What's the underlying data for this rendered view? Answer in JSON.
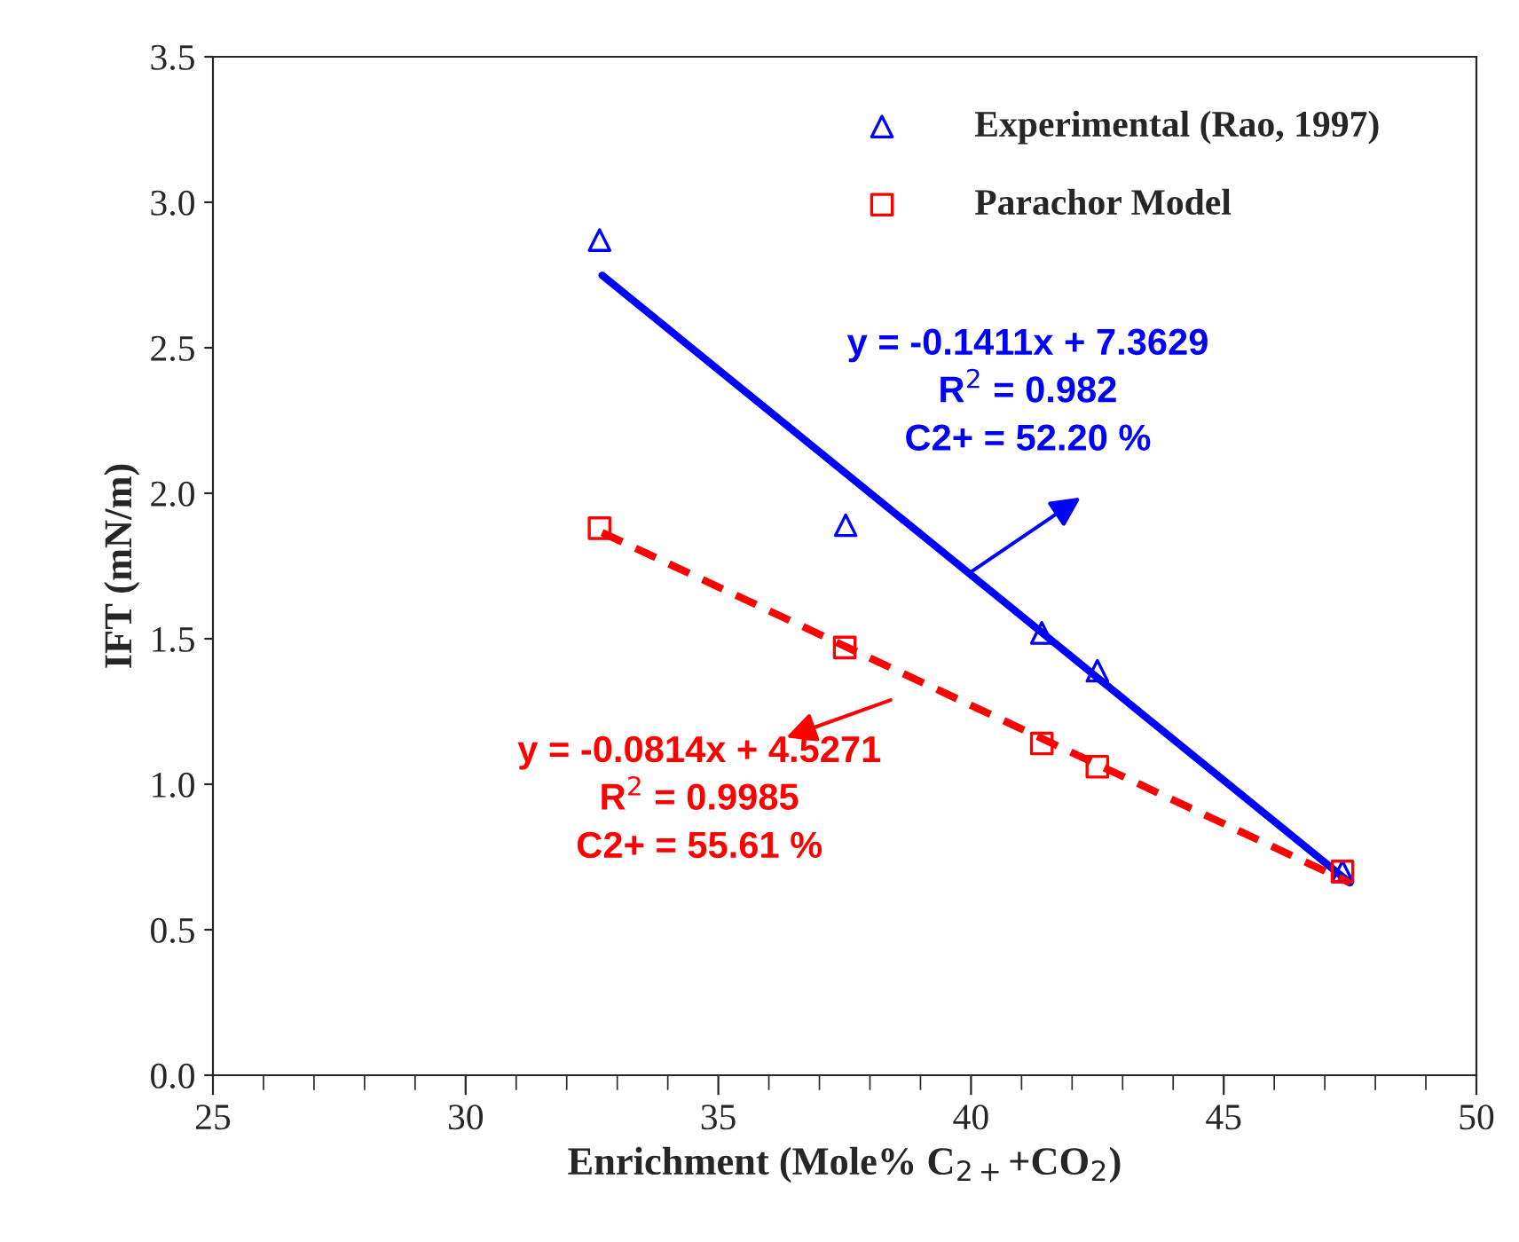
{
  "chart_data": {
    "type": "scatter",
    "xlabel": "Enrichment (Mole% C$_{2+}$+CO$_{2}$)",
    "ylabel": "IFT (mN/m)",
    "xlim": [
      25,
      50
    ],
    "xticks": [
      25,
      30,
      35,
      40,
      45,
      50
    ],
    "ylim": [
      0,
      3.5
    ],
    "yticks": [
      {
        "value": 0,
        "label": "0.0"
      },
      {
        "value": 0.5,
        "label": "0.5"
      },
      {
        "value": 1,
        "label": "1.0"
      },
      {
        "value": 1.5,
        "label": "1.5"
      },
      {
        "value": 2,
        "label": "2.0"
      },
      {
        "value": 2.5,
        "label": "2.5"
      },
      {
        "value": 3,
        "label": "3.0"
      },
      {
        "value": 3.5,
        "label": "3.5"
      }
    ],
    "grid": false,
    "legend": "top right",
    "series": [
      {
        "name": "Experimental (Rao, 1997)",
        "marker": "triangle",
        "color": "#0000ff",
        "x": [
          32.65,
          37.52,
          41.4,
          42.5,
          47.35
        ],
        "values": [
          2.87,
          1.89,
          1.52,
          1.39,
          0.7
        ]
      },
      {
        "name": "Parachor Model",
        "marker": "square",
        "color": "#ff0000",
        "x": [
          32.65,
          37.5,
          41.4,
          42.5,
          47.35
        ],
        "values": [
          1.88,
          1.47,
          1.14,
          1.06,
          0.7
        ]
      },
      {
        "type": "line",
        "line_style": "solid",
        "color": "#0000ff",
        "x": [
          32.7,
          47.5
        ],
        "values": [
          2.749,
          0.661
        ]
      },
      {
        "type": "line",
        "line_style": "dashed",
        "color": "#ff0000",
        "x": [
          32.7,
          47.5
        ],
        "values": [
          1.865,
          0.661
        ]
      }
    ],
    "annotations": [
      "y = -0.1411x + 7.3629\nR$^{2}$ = 0.982\nC2+ = 52.20 %",
      "y = -0.0814x + 4.5271\nR$^{2}$ = 0.9985\nC2+ = 55.61 %"
    ]
  }
}
